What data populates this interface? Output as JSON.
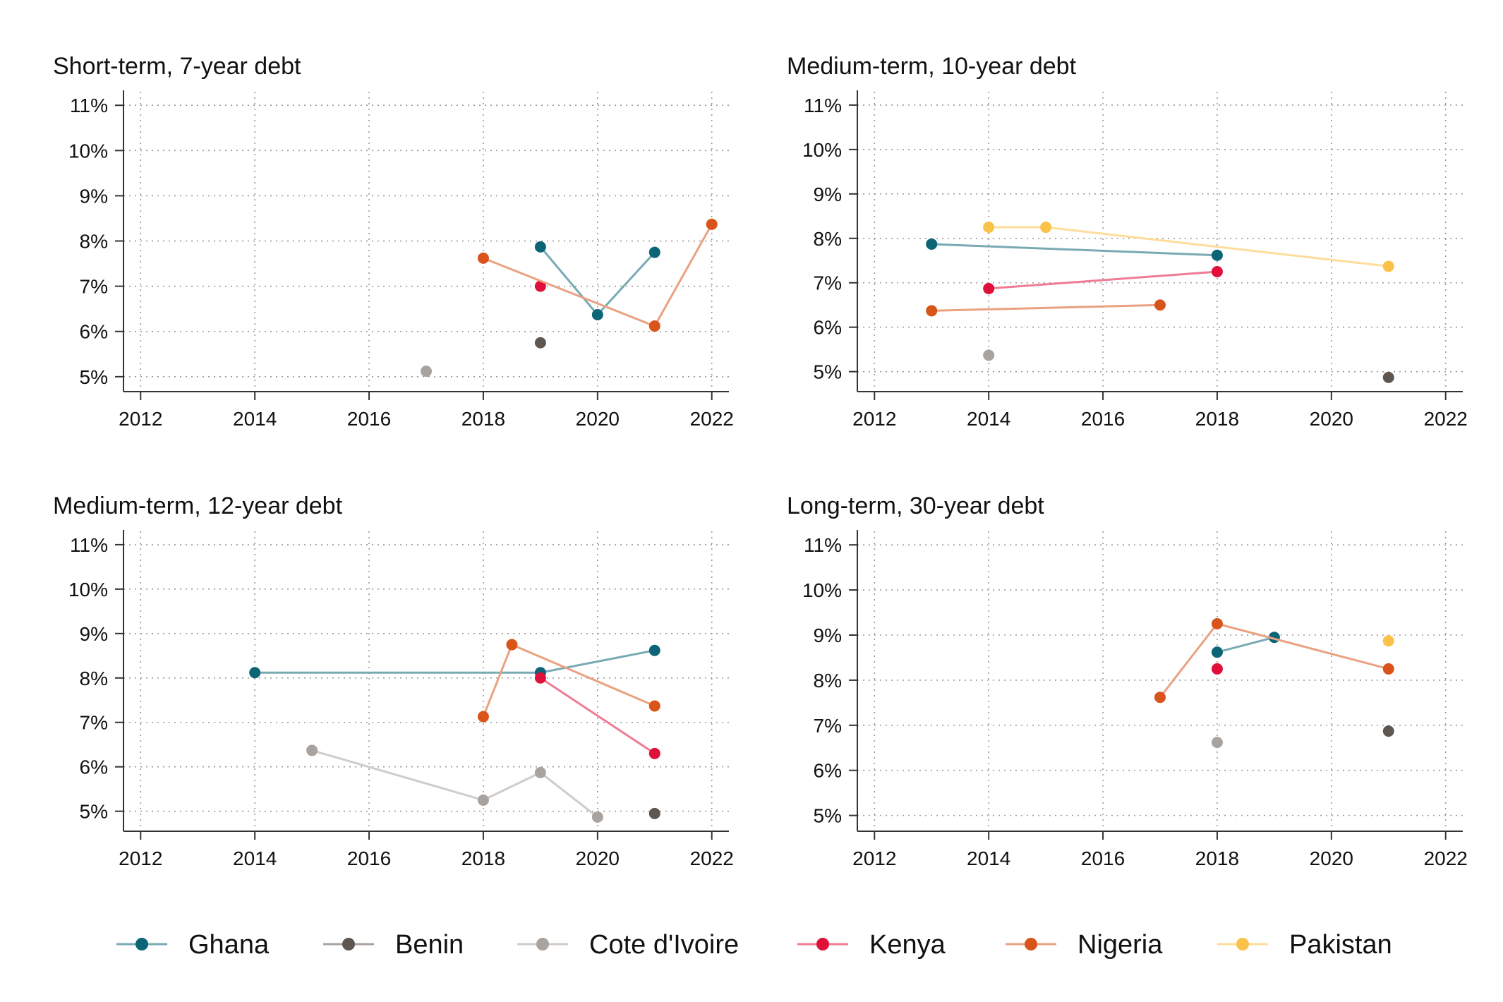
{
  "colors": {
    "Ghana": "#0b6577",
    "Benin": "#5f5650",
    "Cote d'Ivoire": "#a8a39e",
    "Kenya": "#e0103b",
    "Nigeria": "#d9541a",
    "Pakistan": "#fbc24a"
  },
  "legend": [
    {
      "name": "Ghana"
    },
    {
      "name": "Benin"
    },
    {
      "name": "Cote d'Ivoire"
    },
    {
      "name": "Kenya"
    },
    {
      "name": "Nigeria"
    },
    {
      "name": "Pakistan"
    }
  ],
  "chart_data": [
    {
      "type": "line",
      "title": "Short-term, 7-year debt",
      "xlabel": "",
      "ylabel": "",
      "xlim": [
        2011.7,
        2022.3
      ],
      "ylim": [
        4.67,
        11.3
      ],
      "xticks": [
        2012,
        2014,
        2016,
        2018,
        2020,
        2022
      ],
      "yticks": [
        5,
        6,
        7,
        8,
        9,
        10,
        11
      ],
      "ytick_format": "percent",
      "grid": true,
      "series": [
        {
          "name": "Ghana",
          "points": [
            [
              2019,
              7.87
            ],
            [
              2020,
              6.37
            ],
            [
              2021,
              7.75
            ]
          ]
        },
        {
          "name": "Benin",
          "points": [
            [
              2019,
              5.75
            ]
          ]
        },
        {
          "name": "Cote d'Ivoire",
          "points": [
            [
              2017,
              5.12
            ]
          ]
        },
        {
          "name": "Kenya",
          "points": [
            [
              2019,
              7.0
            ]
          ]
        },
        {
          "name": "Nigeria",
          "points": [
            [
              2018,
              7.62
            ],
            [
              2021,
              6.12
            ],
            [
              2022,
              8.37
            ]
          ]
        }
      ]
    },
    {
      "type": "line",
      "title": "Medium-term, 10-year debt",
      "xlabel": "",
      "ylabel": "",
      "xlim": [
        2011.7,
        2022.3
      ],
      "ylim": [
        4.55,
        11.3
      ],
      "xticks": [
        2012,
        2014,
        2016,
        2018,
        2020,
        2022
      ],
      "yticks": [
        5,
        6,
        7,
        8,
        9,
        10,
        11
      ],
      "ytick_format": "percent",
      "grid": true,
      "series": [
        {
          "name": "Ghana",
          "points": [
            [
              2013,
              7.87
            ],
            [
              2018,
              7.62
            ]
          ]
        },
        {
          "name": "Benin",
          "points": [
            [
              2021,
              4.87
            ]
          ]
        },
        {
          "name": "Cote d'Ivoire",
          "points": [
            [
              2014,
              5.37
            ]
          ]
        },
        {
          "name": "Kenya",
          "points": [
            [
              2014,
              6.87
            ],
            [
              2018,
              7.25
            ]
          ]
        },
        {
          "name": "Nigeria",
          "points": [
            [
              2013,
              6.37
            ],
            [
              2017,
              6.5
            ]
          ]
        },
        {
          "name": "Pakistan",
          "points": [
            [
              2014,
              8.25
            ],
            [
              2015,
              8.25
            ],
            [
              2021,
              7.37
            ]
          ]
        }
      ]
    },
    {
      "type": "line",
      "title": "Medium-term, 12-year debt",
      "xlabel": "",
      "ylabel": "",
      "xlim": [
        2011.7,
        2022.3
      ],
      "ylim": [
        4.55,
        11.3
      ],
      "xticks": [
        2012,
        2014,
        2016,
        2018,
        2020,
        2022
      ],
      "yticks": [
        5,
        6,
        7,
        8,
        9,
        10,
        11
      ],
      "ytick_format": "percent",
      "grid": true,
      "series": [
        {
          "name": "Ghana",
          "points": [
            [
              2014,
              8.12
            ],
            [
              2019,
              8.12
            ],
            [
              2021,
              8.62
            ]
          ]
        },
        {
          "name": "Benin",
          "points": [
            [
              2021,
              4.95
            ]
          ]
        },
        {
          "name": "Cote d'Ivoire",
          "points": [
            [
              2015,
              6.37
            ],
            [
              2018,
              5.25
            ],
            [
              2019,
              5.87
            ],
            [
              2020,
              4.87
            ]
          ]
        },
        {
          "name": "Kenya",
          "points": [
            [
              2019,
              8.0
            ],
            [
              2021,
              6.3
            ]
          ]
        },
        {
          "name": "Nigeria",
          "points": [
            [
              2018,
              7.13
            ],
            [
              2018.5,
              8.75
            ],
            [
              2021,
              7.37
            ]
          ]
        }
      ]
    },
    {
      "type": "line",
      "title": "Long-term, 30-year debt",
      "xlabel": "",
      "ylabel": "",
      "xlim": [
        2011.7,
        2022.3
      ],
      "ylim": [
        4.65,
        11.3
      ],
      "xticks": [
        2012,
        2014,
        2016,
        2018,
        2020,
        2022
      ],
      "yticks": [
        5,
        6,
        7,
        8,
        9,
        10,
        11
      ],
      "ytick_format": "percent",
      "grid": true,
      "series": [
        {
          "name": "Ghana",
          "points": [
            [
              2018,
              8.62
            ],
            [
              2019,
              8.95
            ]
          ]
        },
        {
          "name": "Benin",
          "points": [
            [
              2021,
              6.87
            ]
          ]
        },
        {
          "name": "Cote d'Ivoire",
          "points": [
            [
              2018,
              6.62
            ]
          ]
        },
        {
          "name": "Kenya",
          "points": [
            [
              2018,
              8.25
            ]
          ]
        },
        {
          "name": "Nigeria",
          "points": [
            [
              2017,
              7.62
            ],
            [
              2018,
              9.25
            ],
            [
              2021,
              8.25
            ]
          ]
        },
        {
          "name": "Pakistan",
          "points": [
            [
              2021,
              8.87
            ]
          ]
        }
      ]
    }
  ]
}
